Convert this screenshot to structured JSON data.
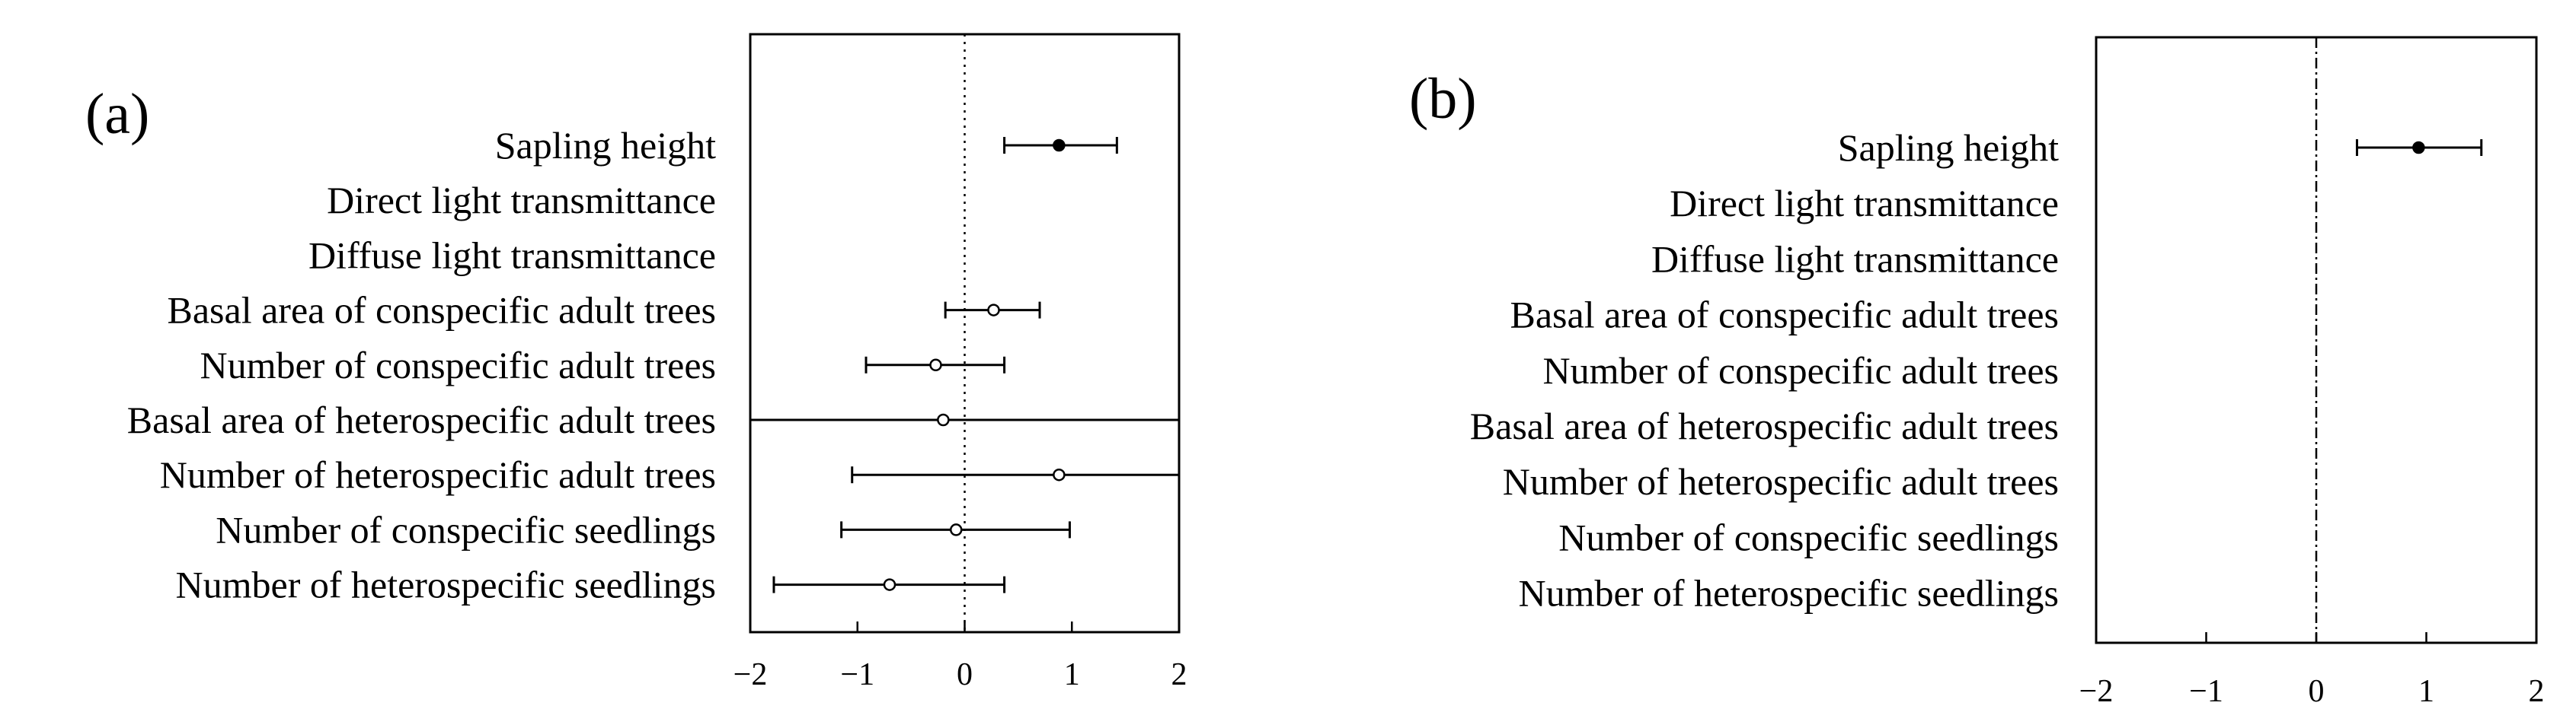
{
  "chart_data": [
    {
      "type": "scatter",
      "panel": "(a)",
      "title": "",
      "xlabel": "",
      "ylabel": "",
      "xlim": [
        -2,
        2
      ],
      "xticks": [
        -2,
        -1,
        0,
        1,
        2
      ],
      "xtick_labels": [
        "−2",
        "−1",
        "0",
        "1",
        "2"
      ],
      "reference_line_x": 0,
      "grid": false,
      "legend": "none",
      "categories": [
        "Sapling height",
        "Direct light transmittance",
        "Diffuse light transmittance",
        "Basal area of conspecific adult trees",
        "Number of conspecific adult trees",
        "Basal area of heterospecific adult trees",
        "Number of heterospecific adult trees",
        "Number of conspecific seedlings",
        "Number of heterospecific seedlings"
      ],
      "estimates": [
        {
          "category": "Sapling height",
          "value": 0.88,
          "lower": 0.37,
          "upper": 1.42,
          "filled": true
        },
        {
          "category": "Basal area of conspecific adult trees",
          "value": 0.27,
          "lower": -0.18,
          "upper": 0.7,
          "filled": false
        },
        {
          "category": "Number of conspecific adult trees",
          "value": -0.27,
          "lower": -0.92,
          "upper": 0.37,
          "filled": false
        },
        {
          "category": "Basal area of heterospecific adult trees",
          "value": -0.2,
          "lower": -2.0,
          "upper": 2.0,
          "filled": false
        },
        {
          "category": "Number of heterospecific adult trees",
          "value": 0.88,
          "lower": -1.05,
          "upper": 2.0,
          "filled": false
        },
        {
          "category": "Number of conspecific seedlings",
          "value": -0.08,
          "lower": -1.15,
          "upper": 0.98,
          "filled": false
        },
        {
          "category": "Number of heterospecific seedlings",
          "value": -0.7,
          "lower": -1.78,
          "upper": 0.37,
          "filled": false
        }
      ],
      "marker_color": "#000000"
    },
    {
      "type": "scatter",
      "panel": "(b)",
      "title": "",
      "xlabel": "",
      "ylabel": "",
      "xlim": [
        -2,
        2
      ],
      "xticks": [
        -2,
        -1,
        0,
        1,
        2
      ],
      "xtick_labels": [
        "−2",
        "−1",
        "0",
        "1",
        "2"
      ],
      "reference_line_x": 0,
      "grid": false,
      "legend": "none",
      "categories": [
        "Sapling height",
        "Direct light transmittance",
        "Diffuse light transmittance",
        "Basal area of conspecific adult trees",
        "Number of conspecific adult trees",
        "Basal area of heterospecific adult trees",
        "Number of heterospecific adult trees",
        "Number of conspecific seedlings",
        "Number of heterospecific seedlings"
      ],
      "estimates": [
        {
          "category": "Sapling height",
          "value": 0.93,
          "lower": 0.37,
          "upper": 1.5,
          "filled": true
        }
      ],
      "marker_color": "#000000"
    }
  ]
}
